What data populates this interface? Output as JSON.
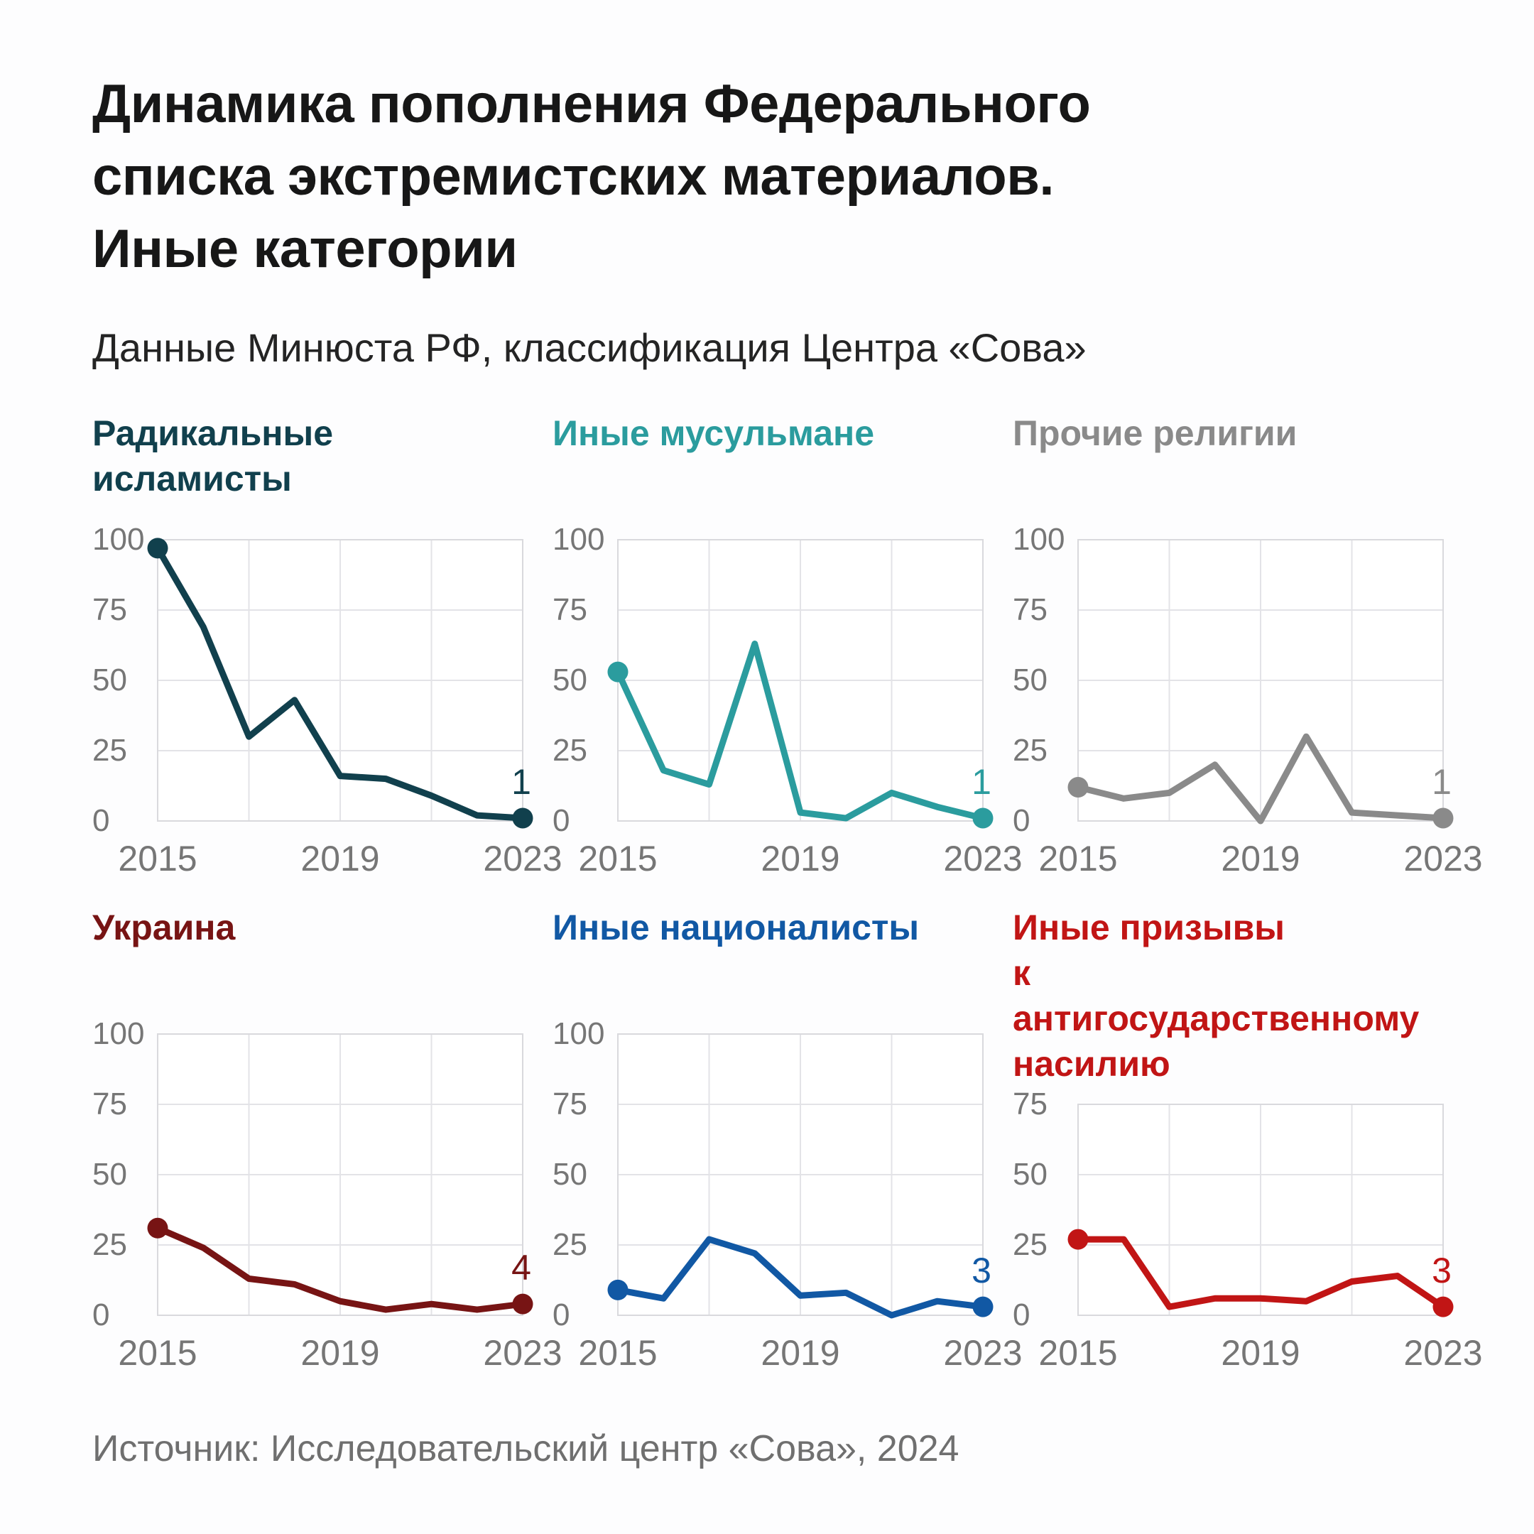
{
  "header": {
    "title": "Динамика пополнения Федерального списка экстремистских материалов. Иные категории",
    "title_lines": [
      "Динамика пополнения Федерального",
      "списка экстремистских материалов.",
      "Иные категории"
    ],
    "subtitle": "Данные Минюста РФ, классификация Центра «Сова»"
  },
  "footer": {
    "source": "Источник: Исследовательский центр «Сова», 2024"
  },
  "chart_data": {
    "type": "line",
    "layout": "small-multiples, 3 columns x 2 rows",
    "x": [
      2015,
      2016,
      2017,
      2018,
      2019,
      2020,
      2021,
      2022,
      2023
    ],
    "x_tick_labels": [
      "2015",
      "2019",
      "2023"
    ],
    "x_gridlines": [
      2015,
      2017,
      2019,
      2021,
      2023
    ],
    "grid": true,
    "colors": {
      "axis_text": "#767676",
      "gridline": "#e3e3e7",
      "plot_border": "#d9d9dd"
    },
    "panels": [
      {
        "title": "Радикальные исламисты",
        "title_lines": [
          "Радикальные",
          "исламисты"
        ],
        "color": "#11404d",
        "ylim": [
          0,
          100
        ],
        "yticks": [
          100,
          75,
          50,
          25,
          0
        ],
        "values": [
          97,
          69,
          30,
          43,
          16,
          15,
          9,
          2,
          1
        ],
        "end_label": "1"
      },
      {
        "title": "Иные мусульмане",
        "title_lines": [
          "Иные мусульмане"
        ],
        "color": "#2b9c9e",
        "ylim": [
          0,
          100
        ],
        "yticks": [
          100,
          75,
          50,
          25,
          0
        ],
        "values": [
          53,
          18,
          13,
          63,
          3,
          1,
          10,
          5,
          1
        ],
        "end_label": "1"
      },
      {
        "title": "Прочие религии",
        "title_lines": [
          "Прочие религии"
        ],
        "color": "#8a8a8a",
        "ylim": [
          0,
          100
        ],
        "yticks": [
          100,
          75,
          50,
          25,
          0
        ],
        "values": [
          12,
          8,
          10,
          20,
          0,
          30,
          3,
          2,
          1
        ],
        "end_label": "1"
      },
      {
        "title": "Украина",
        "title_lines": [
          "Украина"
        ],
        "color": "#771414",
        "ylim": [
          0,
          100
        ],
        "yticks": [
          100,
          75,
          50,
          25,
          0
        ],
        "values": [
          31,
          24,
          13,
          11,
          5,
          2,
          4,
          2,
          4
        ],
        "end_label": "4"
      },
      {
        "title": "Иные националисты",
        "title_lines": [
          "Иные националисты"
        ],
        "color": "#1158a4",
        "ylim": [
          0,
          100
        ],
        "yticks": [
          100,
          75,
          50,
          25,
          0
        ],
        "values": [
          9,
          6,
          27,
          22,
          7,
          8,
          0,
          5,
          3
        ],
        "end_label": "3"
      },
      {
        "title": "Иные призывы к антигосударственному насилию",
        "title_lines": [
          "Иные призывы",
          "к антигосударственному",
          "насилию"
        ],
        "color": "#c11515",
        "ylim": [
          0,
          75
        ],
        "yticks": [
          75,
          50,
          25,
          0
        ],
        "values": [
          27,
          27,
          3,
          6,
          6,
          5,
          12,
          14,
          3
        ],
        "end_label": "3"
      }
    ]
  }
}
